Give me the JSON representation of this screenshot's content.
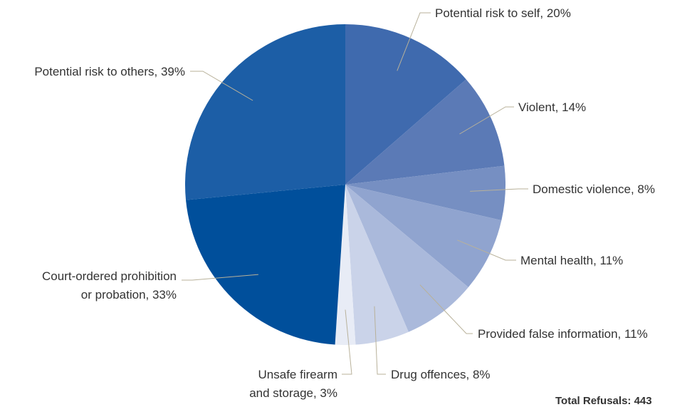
{
  "chart_data": {
    "type": "pie",
    "slices": [
      {
        "label": "Potential risk to self, 20%",
        "value": 20,
        "color": "#3f6aae"
      },
      {
        "label": "Violent, 14%",
        "value": 14,
        "color": "#5b7ab6"
      },
      {
        "label": "Domestic violence, 8%",
        "value": 8,
        "color": "#768fc2"
      },
      {
        "label": "Mental health, 11%",
        "value": 11,
        "color": "#90a4cf"
      },
      {
        "label": "Provided false information, 11%",
        "value": 11,
        "color": "#aab9db"
      },
      {
        "label": "Drug offences, 8%",
        "value": 8,
        "color": "#cad3e9"
      },
      {
        "label": "Unsafe firearm and storage, 3%",
        "label_lines": [
          "Unsafe firearm",
          "and storage, 3%"
        ],
        "value": 3,
        "color": "#e8ecf6"
      },
      {
        "label": "Court-ordered prohibition or probation, 33%",
        "label_lines": [
          "Court-ordered prohibition",
          "or probation, 33%"
        ],
        "value": 33,
        "color": "#004f9b"
      },
      {
        "label": "Potential risk to others, 39%",
        "value": 39,
        "color": "#1c5ea6"
      }
    ],
    "total_label": "Total Refusals: 443"
  }
}
